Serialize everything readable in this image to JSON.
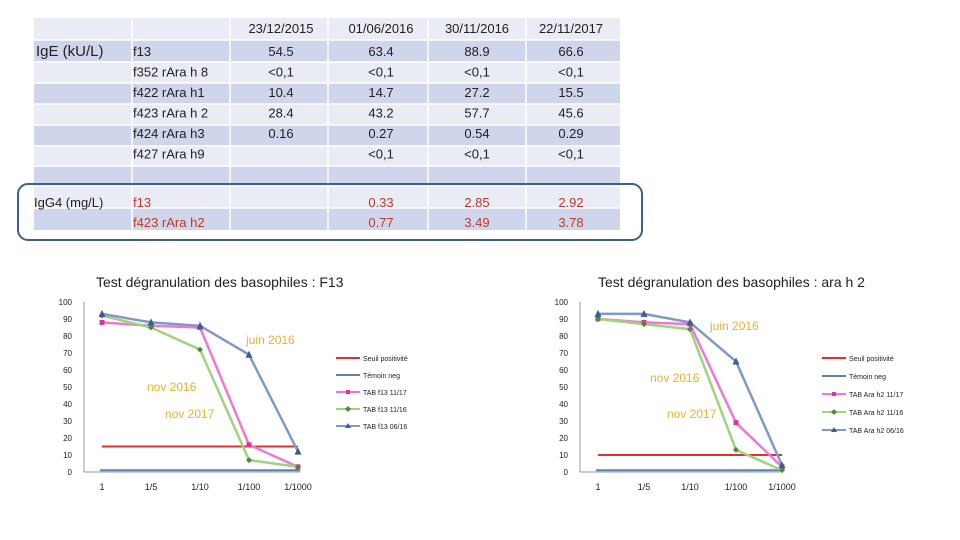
{
  "table": {
    "dates": [
      "23/12/2015",
      "01/06/2016",
      "30/11/2016",
      "22/11/2017"
    ],
    "ige_label": "IgE (kU/L)",
    "igg4_label": "IgG4 (mg/L)",
    "ige_rows": [
      {
        "name": "f13",
        "values": [
          "54.5",
          "63.4",
          "88.9",
          "66.6"
        ]
      },
      {
        "name": "f352 rAra h 8",
        "values": [
          "<0,1",
          "<0,1",
          "<0,1",
          "<0,1"
        ]
      },
      {
        "name": "f422 rAra h1",
        "values": [
          "10.4",
          "14.7",
          "27.2",
          "15.5"
        ]
      },
      {
        "name": "f423 rAra h 2",
        "values": [
          "28.4",
          "43.2",
          "57.7",
          "45.6"
        ]
      },
      {
        "name": "f424 rAra h3",
        "values": [
          "0.16",
          "0.27",
          "0.54",
          "0.29"
        ]
      },
      {
        "name": "f427 rAra h9",
        "values": [
          "",
          "<0,1",
          "<0,1",
          "<0,1"
        ]
      }
    ],
    "igg4_rows": [
      {
        "name": "f13",
        "values": [
          "",
          "0.33",
          "2.85",
          "2.92"
        ]
      },
      {
        "name": "f423 rAra h2",
        "values": [
          "",
          "0.77",
          "3.49",
          "3.78"
        ]
      }
    ],
    "colors": {
      "rowA": "#e9ebf5",
      "rowB": "#cfd5ea",
      "highlight": "#3f5f8f"
    }
  },
  "chart_data": [
    {
      "type": "line",
      "title": "Test dégranulation des basophiles : F13",
      "categories": [
        "1",
        "1/5",
        "1/10",
        "1/100",
        "1/1000"
      ],
      "ylim": [
        0,
        100
      ],
      "yticks": [
        0,
        10,
        20,
        30,
        40,
        50,
        60,
        70,
        80,
        90,
        100
      ],
      "grid": false,
      "legend": "right",
      "series": [
        {
          "name": "Seuil positivité",
          "color": "#e03030",
          "marker": "none",
          "values": [
            15,
            15,
            15,
            15,
            15
          ]
        },
        {
          "name": "Témoin neg",
          "color": "#5b82b5",
          "marker": "none",
          "values": [
            1,
            1,
            1,
            1,
            1
          ]
        },
        {
          "name": "TAB f13 11/17",
          "color": "#ee77d8",
          "marker": "square",
          "values": [
            88,
            86,
            85,
            16,
            3
          ]
        },
        {
          "name": "TAB f13 11/16",
          "color": "#9ed47e",
          "marker": "diamond",
          "values": [
            92,
            85,
            72,
            7,
            3
          ]
        },
        {
          "name": "TAB f13 06/16",
          "color": "#7f9ac4",
          "marker": "triangle",
          "values": [
            93,
            88,
            86,
            69,
            12
          ]
        }
      ],
      "annotations": [
        "juin 2016",
        "nov 2016",
        "nov 2017"
      ]
    },
    {
      "type": "line",
      "title": "Test dégranulation des basophiles : ara h 2",
      "categories": [
        "1",
        "1/5",
        "1/10",
        "1/100",
        "1/1000"
      ],
      "ylim": [
        0,
        100
      ],
      "yticks": [
        0,
        10,
        20,
        30,
        40,
        50,
        60,
        70,
        80,
        90,
        100
      ],
      "grid": false,
      "legend": "right",
      "series": [
        {
          "name": "Seuil positivité",
          "color": "#e03030",
          "marker": "none",
          "values": [
            10,
            10,
            10,
            10,
            10
          ]
        },
        {
          "name": "Témoin neg",
          "color": "#5b82b5",
          "marker": "none",
          "values": [
            1,
            1,
            1,
            1,
            1
          ]
        },
        {
          "name": "TAB Ara h2 11/17",
          "color": "#ee77d8",
          "marker": "square",
          "values": [
            90,
            88,
            87,
            29,
            3
          ]
        },
        {
          "name": "TAB Ara h2 11/16",
          "color": "#9ed47e",
          "marker": "diamond",
          "values": [
            90,
            87,
            84,
            13,
            1
          ]
        },
        {
          "name": "TAB Ara h2 06/16",
          "color": "#7f9ac4",
          "marker": "triangle",
          "values": [
            93,
            93,
            88,
            65,
            4
          ]
        }
      ],
      "annotations": [
        "juin 2016",
        "nov 2016",
        "nov 2017"
      ]
    }
  ]
}
